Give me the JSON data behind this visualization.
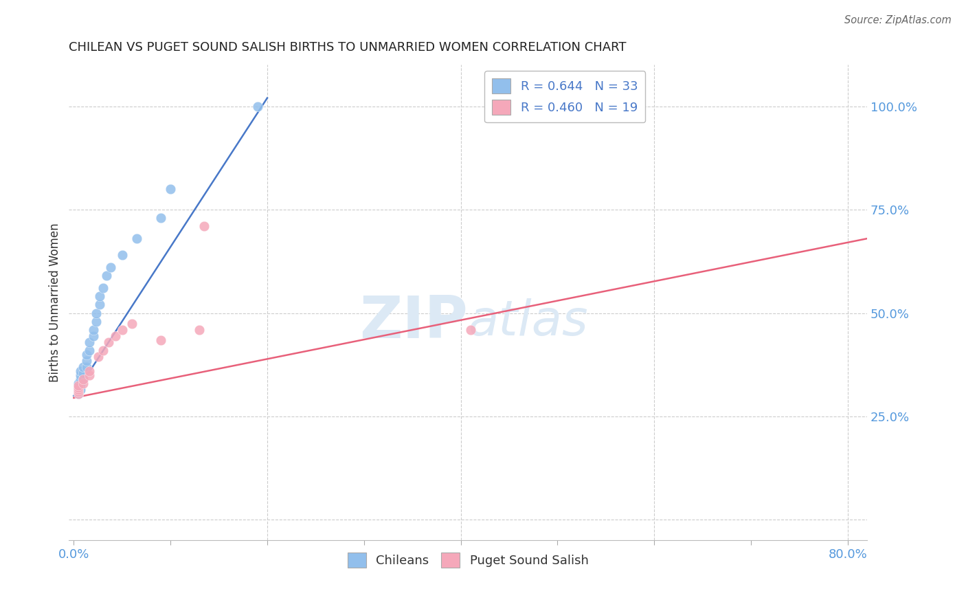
{
  "title": "CHILEAN VS PUGET SOUND SALISH BIRTHS TO UNMARRIED WOMEN CORRELATION CHART",
  "source": "Source: ZipAtlas.com",
  "ylabel": "Births to Unmarried Women",
  "ylim": [
    -0.05,
    1.1
  ],
  "xlim": [
    -0.005,
    0.82
  ],
  "ytick_positions": [
    0.0,
    0.25,
    0.5,
    0.75,
    1.0
  ],
  "ytick_labels": [
    "",
    "25.0%",
    "50.0%",
    "75.0%",
    "100.0%"
  ],
  "xtick_positions": [
    0.0,
    0.8
  ],
  "xtick_labels": [
    "0.0%",
    "80.0%"
  ],
  "blue_R": 0.644,
  "blue_N": 33,
  "pink_R": 0.46,
  "pink_N": 19,
  "blue_color": "#92bfec",
  "pink_color": "#f5a8ba",
  "blue_line_color": "#4878c8",
  "pink_line_color": "#e8607a",
  "axis_label_color": "#5599dd",
  "watermark_color": "#dce9f5",
  "title_color": "#222222",
  "grid_color": "#cccccc",
  "blue_scatter_x": [
    0.005,
    0.005,
    0.005,
    0.005,
    0.005,
    0.005,
    0.007,
    0.007,
    0.007,
    0.007,
    0.007,
    0.01,
    0.01,
    0.01,
    0.013,
    0.013,
    0.013,
    0.016,
    0.016,
    0.02,
    0.02,
    0.023,
    0.023,
    0.027,
    0.027,
    0.03,
    0.034,
    0.038,
    0.05,
    0.065,
    0.09,
    0.1,
    0.19
  ],
  "blue_scatter_y": [
    0.305,
    0.31,
    0.315,
    0.32,
    0.325,
    0.33,
    0.315,
    0.33,
    0.34,
    0.35,
    0.36,
    0.34,
    0.355,
    0.37,
    0.37,
    0.385,
    0.4,
    0.41,
    0.43,
    0.445,
    0.46,
    0.48,
    0.5,
    0.52,
    0.54,
    0.56,
    0.59,
    0.61,
    0.64,
    0.68,
    0.73,
    0.8,
    1.0
  ],
  "pink_scatter_x": [
    0.005,
    0.005,
    0.005,
    0.005,
    0.005,
    0.01,
    0.01,
    0.016,
    0.016,
    0.025,
    0.03,
    0.036,
    0.043,
    0.05,
    0.06,
    0.09,
    0.13,
    0.135,
    0.41
  ],
  "pink_scatter_y": [
    0.305,
    0.31,
    0.315,
    0.32,
    0.325,
    0.33,
    0.34,
    0.35,
    0.36,
    0.395,
    0.41,
    0.43,
    0.445,
    0.46,
    0.475,
    0.435,
    0.46,
    0.71,
    0.46
  ],
  "blue_trend_x": [
    0.0,
    0.2
  ],
  "blue_trend_y": [
    0.3,
    1.02
  ],
  "pink_trend_x": [
    0.0,
    0.82
  ],
  "pink_trend_y": [
    0.295,
    0.68
  ]
}
